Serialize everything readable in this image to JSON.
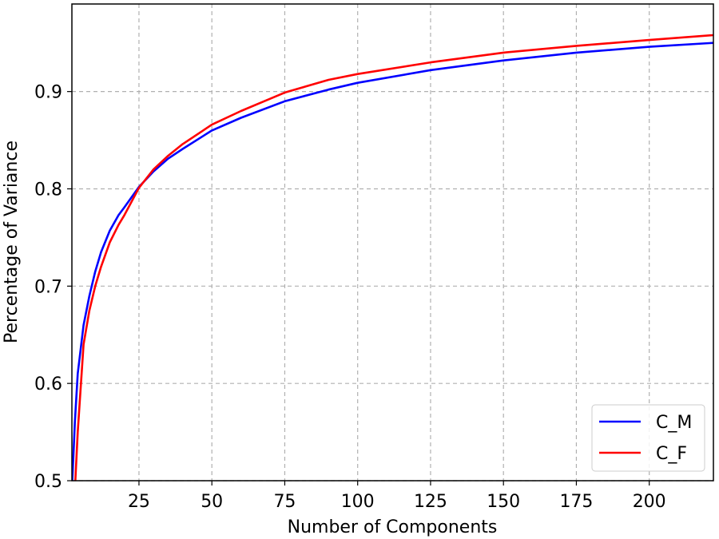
{
  "chart_data": {
    "type": "line",
    "title": "",
    "xlabel": "Number of Components",
    "ylabel": "Percentage of Variance",
    "xlim": [
      2,
      222
    ],
    "ylim": [
      0.5,
      0.99
    ],
    "xticks": [
      25,
      50,
      75,
      100,
      125,
      150,
      175,
      200
    ],
    "xtick_labels": [
      "25",
      "50",
      "75",
      "100",
      "125",
      "150",
      "175",
      "200"
    ],
    "yticks": [
      0.5,
      0.6,
      0.7,
      0.8,
      0.9
    ],
    "ytick_labels": [
      "0.5",
      "0.6",
      "0.7",
      "0.8",
      "0.9"
    ],
    "grid": true,
    "legend_position": "lower-right",
    "series": [
      {
        "name": "C_M",
        "color": "#0000ff",
        "x": [
          2,
          3,
          4,
          6,
          8,
          10,
          12,
          15,
          18,
          20,
          25,
          30,
          35,
          40,
          50,
          60,
          75,
          90,
          100,
          125,
          150,
          175,
          200,
          222
        ],
        "y": [
          0.49,
          0.56,
          0.61,
          0.66,
          0.69,
          0.715,
          0.735,
          0.757,
          0.773,
          0.781,
          0.802,
          0.818,
          0.831,
          0.841,
          0.86,
          0.873,
          0.89,
          0.902,
          0.909,
          0.922,
          0.932,
          0.94,
          0.946,
          0.95
        ]
      },
      {
        "name": "C_F",
        "color": "#ff0000",
        "x": [
          3,
          4,
          6,
          8,
          10,
          12,
          15,
          18,
          20,
          25,
          30,
          35,
          40,
          50,
          60,
          75,
          90,
          100,
          125,
          150,
          175,
          200,
          222
        ],
        "y": [
          0.49,
          0.55,
          0.64,
          0.675,
          0.7,
          0.72,
          0.745,
          0.763,
          0.773,
          0.801,
          0.82,
          0.834,
          0.846,
          0.866,
          0.88,
          0.899,
          0.912,
          0.918,
          0.93,
          0.94,
          0.947,
          0.953,
          0.958
        ]
      }
    ]
  }
}
